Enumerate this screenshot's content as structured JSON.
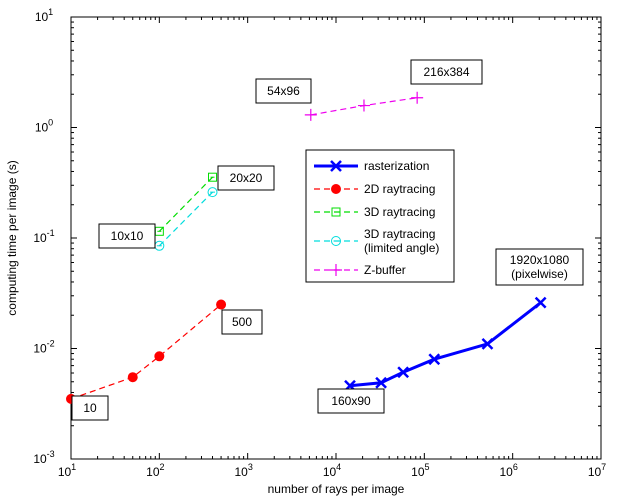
{
  "chart_data": {
    "type": "line",
    "title": "",
    "xlabel": "number of rays per image",
    "ylabel": "computing time per image (s)",
    "xscale": "log",
    "yscale": "log",
    "xlim": [
      10,
      10000000
    ],
    "ylim": [
      0.001,
      10
    ],
    "grid": false,
    "legend_position": "center-right",
    "x_ticks": [
      {
        "base": "10",
        "exp": "1"
      },
      {
        "base": "10",
        "exp": "2"
      },
      {
        "base": "10",
        "exp": "3"
      },
      {
        "base": "10",
        "exp": "4"
      },
      {
        "base": "10",
        "exp": "5"
      },
      {
        "base": "10",
        "exp": "6"
      },
      {
        "base": "10",
        "exp": "7"
      }
    ],
    "y_ticks": [
      {
        "base": "10",
        "exp": "-3"
      },
      {
        "base": "10",
        "exp": "-2"
      },
      {
        "base": "10",
        "exp": "-1"
      },
      {
        "base": "10",
        "exp": "0"
      },
      {
        "base": "10",
        "exp": "1"
      }
    ],
    "series": [
      {
        "name": "rasterization",
        "color": "#0000ff",
        "line_style": "solid",
        "marker": "x",
        "x": [
          14400,
          32400,
          57600,
          129600,
          518400,
          2073600
        ],
        "y": [
          0.0046,
          0.0049,
          0.0061,
          0.008,
          0.011,
          0.026
        ]
      },
      {
        "name": "2D raytracing",
        "color": "#ff0000",
        "line_style": "dashed",
        "marker": "filled-circle",
        "x": [
          10,
          50,
          100,
          500
        ],
        "y": [
          0.0035,
          0.0055,
          0.0085,
          0.025
        ]
      },
      {
        "name": "3D raytracing",
        "color": "#00dd00",
        "line_style": "dashed",
        "marker": "square-dot",
        "x": [
          100,
          400
        ],
        "y": [
          0.115,
          0.355
        ]
      },
      {
        "name": "3D raytracing (limited angle)",
        "legend_lines": [
          "3D raytracing",
          "(limited angle)"
        ],
        "color": "#00dddd",
        "line_style": "dashed",
        "marker": "circle-dash",
        "x": [
          100,
          400
        ],
        "y": [
          0.085,
          0.26
        ]
      },
      {
        "name": "Z-buffer",
        "color": "#ee00ee",
        "line_style": "dashed",
        "marker": "plus",
        "x": [
          5184,
          20736,
          82944
        ],
        "y": [
          1.3,
          1.58,
          1.86
        ]
      }
    ],
    "annotations": [
      {
        "lines": [
          "54x96"
        ],
        "anchor": "Z-buffer first point"
      },
      {
        "lines": [
          "216x384"
        ],
        "anchor": "Z-buffer last point"
      },
      {
        "lines": [
          "20x20"
        ],
        "anchor": "3D raytracing last point"
      },
      {
        "lines": [
          "10x10"
        ],
        "anchor": "3D raytracing first point"
      },
      {
        "lines": [
          "500"
        ],
        "anchor": "2D raytracing last point"
      },
      {
        "lines": [
          "10"
        ],
        "anchor": "2D raytracing first point"
      },
      {
        "lines": [
          "160x90"
        ],
        "anchor": "rasterization first point"
      },
      {
        "lines": [
          "1920x1080",
          "(pixelwise)"
        ],
        "anchor": "rasterization last point"
      }
    ]
  }
}
